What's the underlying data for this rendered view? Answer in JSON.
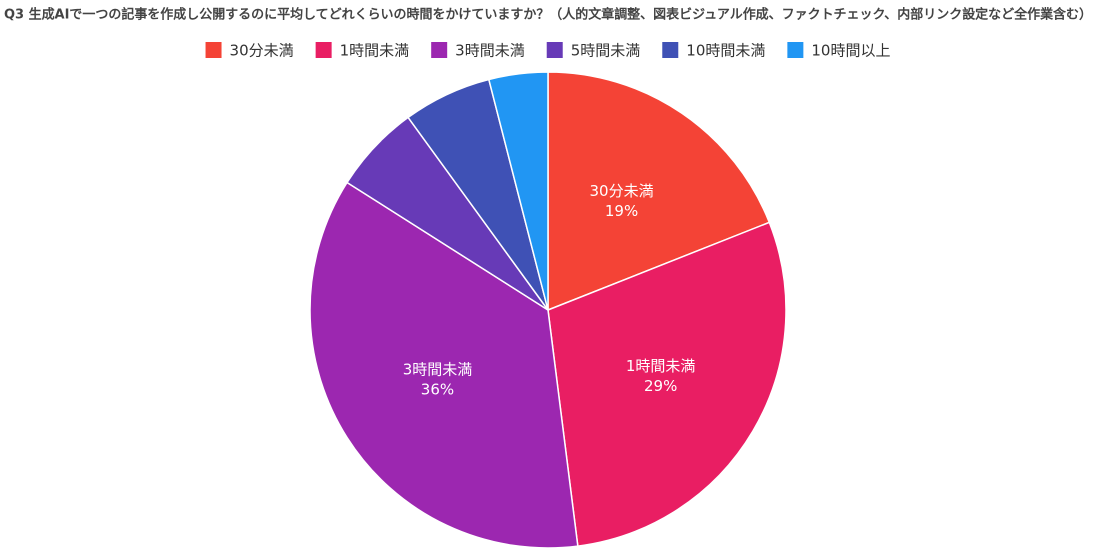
{
  "chart_data": {
    "type": "pie",
    "title": "Q3 生成AIで一つの記事を作成し公開するのに平均してどれくらいの時間をかけていますか？（人的文章調整、図表ビジュアル作成、ファクトチェック、内部リンク設定など全作業含む）",
    "categories": [
      "30分未満",
      "1時間未満",
      "3時間未満",
      "5時間未満",
      "10時間未満",
      "10時間以上"
    ],
    "values": [
      19,
      29,
      36,
      6,
      6,
      4
    ],
    "value_labels": [
      "19%",
      "29%",
      "36%",
      null,
      null,
      null
    ],
    "colors": [
      "#f44336",
      "#e91e63",
      "#9c27b0",
      "#673ab7",
      "#3f51b5",
      "#2196f3"
    ],
    "legend": "top"
  }
}
